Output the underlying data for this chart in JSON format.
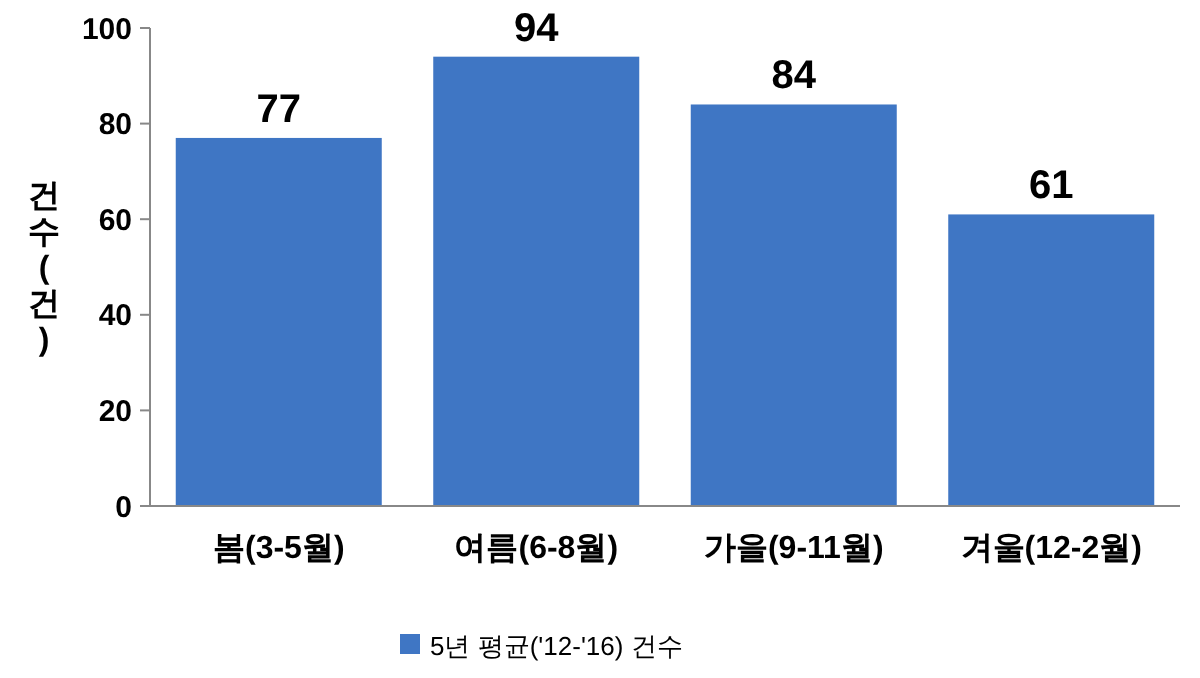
{
  "chart_data": {
    "type": "bar",
    "ylabel": "건수( 건)",
    "categories": [
      "봄(3-5월)",
      "여름(6-8월)",
      "가을(9-11월)",
      "겨울(12-2월)"
    ],
    "series": [
      {
        "name": "5년 평균('12-'16) 건수",
        "color": "#3f76c4",
        "values": [
          77,
          94,
          84,
          61
        ]
      }
    ],
    "ylim": [
      0,
      100
    ],
    "yticks": [
      0,
      20,
      40,
      60,
      80,
      100
    ],
    "data_labels": true,
    "legend": "bottom",
    "grid": false
  }
}
